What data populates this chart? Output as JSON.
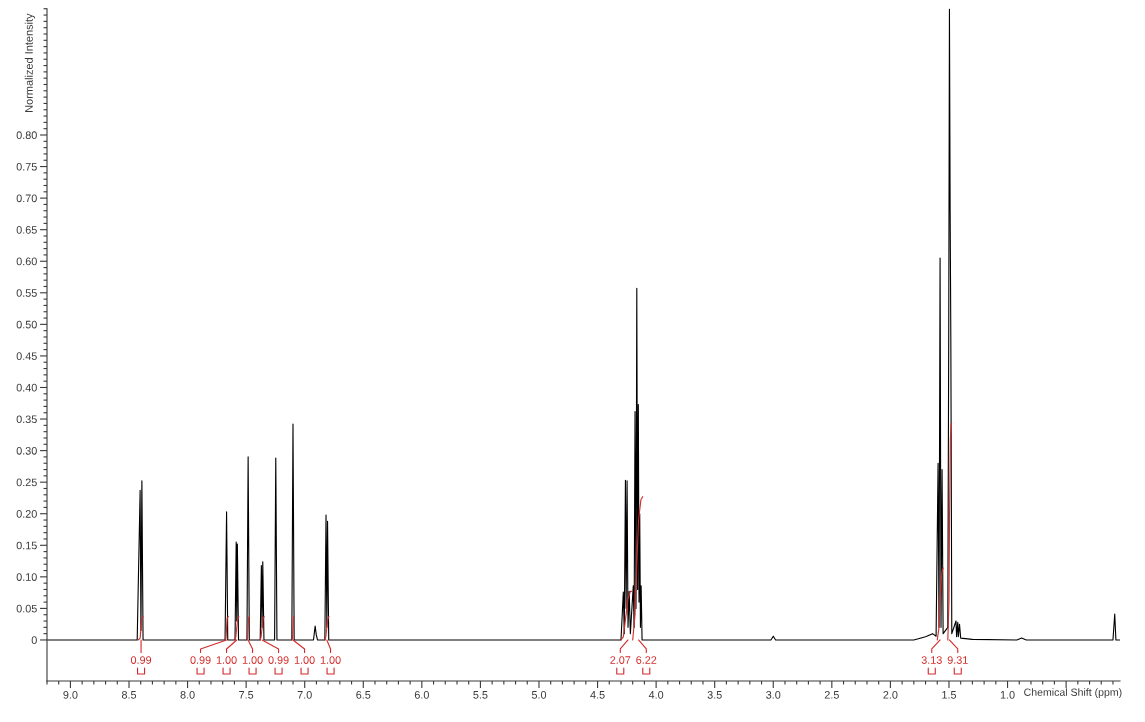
{
  "chart_data": {
    "type": "line",
    "xlabel": "Chemical Shift (ppm)",
    "ylabel": "Normalized Intensity",
    "line_style": "solid",
    "marker": "none",
    "xlim": [
      9.2,
      0.04
    ],
    "ylim": [
      -0.065,
      1.0
    ],
    "xticks": [
      {
        "value": 9,
        "label": "9.0"
      },
      8.5,
      {
        "value": 8,
        "label": "8.0"
      },
      7.5,
      {
        "value": 7,
        "label": "7.0"
      },
      6.5,
      {
        "value": 6,
        "label": "6.0"
      },
      5.5,
      {
        "value": 5,
        "label": "5.0"
      },
      4.5,
      {
        "value": 4,
        "label": "4.0"
      },
      3.5,
      {
        "value": 3,
        "label": "3.0"
      },
      2.5,
      {
        "value": 2,
        "label": "2.0"
      },
      1.5,
      {
        "value": 1,
        "label": "1.0"
      },
      {
        "value": 0.5,
        "label": null
      }
    ],
    "yticks": [
      0,
      0.05,
      {
        "value": 0.1,
        "label": "0.10"
      },
      0.15,
      {
        "value": 0.2,
        "label": "0.20"
      },
      0.25,
      {
        "value": 0.3,
        "label": "0.30"
      },
      0.35,
      {
        "value": 0.4,
        "label": "0.40"
      },
      0.45,
      {
        "value": 0.5,
        "label": "0.50"
      },
      0.55,
      {
        "value": 0.6,
        "label": "0.60"
      },
      0.65,
      {
        "value": 0.7,
        "label": "0.70"
      },
      0.75,
      {
        "value": 0.8,
        "label": "0.80"
      }
    ],
    "series": [
      {
        "color": "#000000",
        "x": [
          9.2,
          8.43,
          8.405,
          8.398,
          8.39,
          8.38,
          7.68,
          7.667,
          7.657,
          7.595,
          7.585,
          7.58,
          7.575,
          7.565,
          7.493,
          7.483,
          7.473,
          7.38,
          7.37,
          7.364,
          7.358,
          7.348,
          7.257,
          7.247,
          7.237,
          7.11,
          7.1,
          7.09,
          6.925,
          6.911,
          6.901,
          6.891,
          6.828,
          6.818,
          6.811,
          6.805,
          6.795,
          4.3,
          4.28,
          4.272,
          4.262,
          4.256,
          4.248,
          4.24,
          4.23,
          4.22,
          4.195,
          4.188,
          4.18,
          4.172,
          4.165,
          4.158,
          4.152,
          4.146,
          4.14,
          4.134,
          4.128,
          4.12,
          3.02,
          3.0,
          2.98,
          1.8,
          1.7,
          1.64,
          1.61,
          1.593,
          1.585,
          1.576,
          1.568,
          1.559,
          1.55,
          1.51,
          1.502,
          1.496,
          1.49,
          1.484,
          1.476,
          1.44,
          1.435,
          1.425,
          1.42,
          1.41,
          1.4,
          1.3,
          0.92,
          0.88,
          0.84,
          0.1,
          0.085,
          0.075,
          0.04
        ],
        "values": [
          0,
          0,
          0.237,
          0.015,
          0.252,
          0,
          0,
          0.203,
          0,
          0,
          0.155,
          0.03,
          0.152,
          0,
          0,
          0.29,
          0,
          0,
          0.118,
          0.02,
          0.124,
          0,
          0,
          0.288,
          0,
          0,
          0.342,
          0,
          0,
          0.022,
          0.008,
          0,
          0,
          0.198,
          0.02,
          0.188,
          0,
          0,
          0.076,
          0.01,
          0.253,
          0.05,
          0.252,
          0.02,
          0.077,
          0.01,
          0.086,
          0.02,
          0.362,
          0.05,
          0.557,
          0.08,
          0.373,
          0.06,
          0.2,
          0.02,
          0.086,
          0,
          0,
          0.006,
          0,
          0,
          0.005,
          0.01,
          0.006,
          0.28,
          0.02,
          0.605,
          0.02,
          0.27,
          0.01,
          0.02,
          0.49,
          1.0,
          0.68,
          0.47,
          0.01,
          0.03,
          0.005,
          0.028,
          0.005,
          0.025,
          0.003,
          0.001,
          0,
          0.003,
          0,
          0,
          0.041,
          0,
          0
        ]
      },
      {
        "color": "#d42a2a",
        "x": [
          8.42,
          8.405,
          8.39,
          8.38
        ],
        "values": [
          0,
          0.003,
          0.035,
          0.037
        ]
      },
      {
        "color": "#d42a2a",
        "x": [
          7.68,
          7.672,
          7.662,
          7.652
        ],
        "values": [
          0,
          0.003,
          0.035,
          0.037
        ]
      },
      {
        "color": "#d42a2a",
        "x": [
          7.595,
          7.588,
          7.572,
          7.562
        ],
        "values": [
          0,
          0.005,
          0.034,
          0.037
        ]
      },
      {
        "color": "#d42a2a",
        "x": [
          7.493,
          7.487,
          7.479,
          7.473
        ],
        "values": [
          0,
          0.003,
          0.035,
          0.037
        ]
      },
      {
        "color": "#d42a2a",
        "x": [
          7.38,
          7.372,
          7.356,
          7.346
        ],
        "values": [
          0,
          0.005,
          0.034,
          0.037
        ]
      },
      {
        "color": "#d42a2a",
        "x": [
          7.11,
          7.104,
          7.096,
          7.09
        ],
        "values": [
          0,
          0.003,
          0.035,
          0.037
        ]
      },
      {
        "color": "#d42a2a",
        "x": [
          6.828,
          6.82,
          6.802,
          6.793
        ],
        "values": [
          0,
          0.005,
          0.034,
          0.037
        ]
      },
      {
        "color": "#d42a2a",
        "x": [
          4.3,
          4.28,
          4.26,
          4.24,
          4.22,
          4.21
        ],
        "values": [
          0,
          0.005,
          0.035,
          0.065,
          0.077,
          0.077
        ]
      },
      {
        "color": "#d42a2a",
        "x": [
          4.2,
          4.18,
          4.165,
          4.15,
          4.13,
          4.115
        ],
        "values": [
          0,
          0.04,
          0.12,
          0.19,
          0.222,
          0.227
        ]
      },
      {
        "color": "#d42a2a",
        "x": [
          1.6,
          1.585,
          1.575,
          1.56,
          1.55
        ],
        "values": [
          0,
          0.02,
          0.07,
          0.108,
          0.114
        ]
      },
      {
        "color": "#d42a2a",
        "x": [
          1.51,
          1.5,
          1.495,
          1.488,
          1.48
        ],
        "values": [
          0,
          0.06,
          0.2,
          0.32,
          0.344
        ]
      }
    ],
    "annotations": [
      {
        "text": "0.99",
        "x": 8.397,
        "y": 0
      },
      {
        "text": "0.99",
        "x": 7.667,
        "y": 0
      },
      {
        "text": "1.00",
        "x": 7.58,
        "y": 0
      },
      {
        "text": "1.00",
        "x": 7.483,
        "y": 0
      },
      {
        "text": "0.99",
        "x": 7.364,
        "y": 0
      },
      {
        "text": "1.00",
        "x": 7.1,
        "y": 0
      },
      {
        "text": "1.00",
        "x": 6.811,
        "y": 0
      },
      {
        "text": "2.07",
        "x": 4.24,
        "y": 0
      },
      {
        "text": "6.22",
        "x": 4.15,
        "y": 0
      },
      {
        "text": "3.13",
        "x": 1.575,
        "y": 0
      },
      {
        "text": "9.31",
        "x": 1.497,
        "y": 0
      }
    ]
  }
}
